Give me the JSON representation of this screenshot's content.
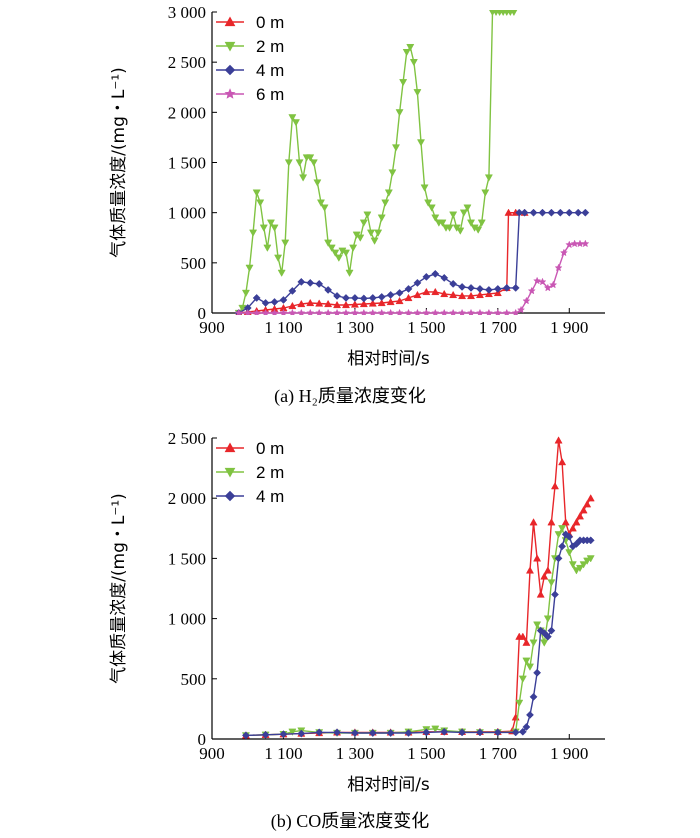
{
  "colors": {
    "0 m": "#e8262a",
    "2 m": "#80c342",
    "4 m": "#3b3f98",
    "6 m": "#c957b4"
  },
  "chart_data": [
    {
      "type": "line",
      "caption": "(a)  H₂质量浓度变化",
      "xlabel": "相对时间/s",
      "ylabel": "气体质量浓度/(mg・L⁻¹)",
      "xlim": [
        900,
        2000
      ],
      "ylim": [
        0,
        3000
      ],
      "xticks": [
        900,
        1100,
        1300,
        1500,
        1700,
        1900
      ],
      "xticklabels": [
        "900",
        "1 100",
        "1 300",
        "1 500",
        "1 700",
        "1 900"
      ],
      "yticks": [
        0,
        500,
        1000,
        1500,
        2000,
        2500,
        3000
      ],
      "yticklabels": [
        "0",
        "500",
        "1 000",
        "1 500",
        "2 000",
        "2 500",
        "3 000"
      ],
      "legend_position": "top-left",
      "series": [
        {
          "name": "0 m",
          "marker": "triangle-up",
          "x": [
            975,
            1000,
            1025,
            1050,
            1075,
            1100,
            1125,
            1150,
            1175,
            1200,
            1225,
            1250,
            1275,
            1300,
            1325,
            1350,
            1375,
            1400,
            1425,
            1450,
            1475,
            1500,
            1525,
            1550,
            1575,
            1600,
            1625,
            1650,
            1675,
            1700,
            1725,
            1730,
            1750,
            1775
          ],
          "y": [
            0,
            10,
            20,
            30,
            40,
            50,
            70,
            90,
            100,
            95,
            90,
            80,
            80,
            85,
            90,
            95,
            100,
            110,
            120,
            150,
            180,
            210,
            210,
            190,
            180,
            170,
            170,
            180,
            190,
            200,
            250,
            1000,
            1000,
            1000
          ]
        },
        {
          "name": "2 m",
          "marker": "triangle-down",
          "x": [
            975,
            985,
            995,
            1005,
            1015,
            1025,
            1035,
            1045,
            1055,
            1065,
            1075,
            1085,
            1095,
            1105,
            1115,
            1125,
            1135,
            1145,
            1155,
            1165,
            1175,
            1185,
            1195,
            1205,
            1215,
            1225,
            1235,
            1245,
            1255,
            1265,
            1275,
            1285,
            1295,
            1305,
            1315,
            1325,
            1335,
            1345,
            1355,
            1365,
            1375,
            1385,
            1395,
            1405,
            1415,
            1425,
            1435,
            1445,
            1455,
            1465,
            1475,
            1485,
            1495,
            1505,
            1515,
            1525,
            1535,
            1545,
            1555,
            1565,
            1575,
            1585,
            1595,
            1605,
            1615,
            1625,
            1635,
            1645,
            1655,
            1665,
            1675,
            1685,
            1695,
            1705,
            1715,
            1725,
            1735,
            1745
          ],
          "y": [
            0,
            50,
            200,
            450,
            800,
            1200,
            1100,
            850,
            650,
            900,
            850,
            550,
            400,
            700,
            1500,
            1950,
            1900,
            1500,
            1350,
            1550,
            1550,
            1500,
            1300,
            1100,
            1050,
            700,
            650,
            600,
            550,
            620,
            600,
            400,
            650,
            780,
            750,
            900,
            980,
            800,
            720,
            800,
            950,
            1100,
            1200,
            1400,
            1650,
            2000,
            2300,
            2600,
            2650,
            2500,
            2200,
            1700,
            1250,
            1100,
            1050,
            950,
            900,
            900,
            850,
            850,
            980,
            850,
            820,
            1000,
            1050,
            900,
            850,
            830,
            900,
            1200,
            1350,
            3000,
            3000,
            3000,
            3000,
            3000,
            3000,
            3000
          ]
        },
        {
          "name": "4 m",
          "marker": "diamond",
          "x": [
            975,
            1000,
            1025,
            1050,
            1075,
            1100,
            1125,
            1150,
            1175,
            1200,
            1225,
            1250,
            1275,
            1300,
            1325,
            1350,
            1375,
            1400,
            1425,
            1450,
            1475,
            1500,
            1525,
            1550,
            1575,
            1600,
            1625,
            1650,
            1675,
            1700,
            1725,
            1750,
            1760,
            1775,
            1800,
            1825,
            1850,
            1875,
            1900,
            1925,
            1945
          ],
          "y": [
            0,
            50,
            150,
            100,
            110,
            130,
            220,
            310,
            300,
            290,
            230,
            170,
            150,
            150,
            145,
            150,
            160,
            180,
            200,
            240,
            300,
            360,
            390,
            350,
            290,
            260,
            250,
            240,
            230,
            240,
            250,
            250,
            1000,
            1000,
            1000,
            1000,
            1000,
            1000,
            1000,
            1000,
            1000
          ]
        },
        {
          "name": "6 m",
          "marker": "star",
          "x": [
            975,
            1000,
            1025,
            1050,
            1075,
            1100,
            1125,
            1150,
            1175,
            1200,
            1225,
            1250,
            1275,
            1300,
            1325,
            1350,
            1375,
            1400,
            1425,
            1450,
            1475,
            1500,
            1525,
            1550,
            1575,
            1600,
            1625,
            1650,
            1675,
            1700,
            1725,
            1750,
            1765,
            1780,
            1795,
            1810,
            1825,
            1840,
            1855,
            1870,
            1885,
            1900,
            1915,
            1930,
            1945
          ],
          "y": [
            0,
            0,
            0,
            0,
            0,
            0,
            0,
            0,
            0,
            0,
            0,
            0,
            0,
            0,
            0,
            0,
            0,
            0,
            0,
            0,
            0,
            0,
            0,
            0,
            0,
            0,
            0,
            0,
            0,
            0,
            0,
            0,
            30,
            120,
            220,
            320,
            310,
            250,
            280,
            450,
            600,
            680,
            690,
            690,
            690
          ]
        }
      ]
    },
    {
      "type": "line",
      "caption": "(b)  CO质量浓度变化",
      "xlabel": "相对时间/s",
      "ylabel": "气体质量浓度/(mg・L⁻¹)",
      "xlim": [
        900,
        2000
      ],
      "ylim": [
        0,
        2500
      ],
      "xticks": [
        900,
        1100,
        1300,
        1500,
        1700,
        1900
      ],
      "xticklabels": [
        "900",
        "1 100",
        "1 300",
        "1 500",
        "1 700",
        "1 900"
      ],
      "yticks": [
        0,
        500,
        1000,
        1500,
        2000,
        2500
      ],
      "yticklabels": [
        "0",
        "500",
        "1 000",
        "1 500",
        "2 000",
        "2 500"
      ],
      "legend_position": "top-left",
      "series": [
        {
          "name": "0 m",
          "marker": "triangle-up",
          "x": [
            995,
            1050,
            1100,
            1150,
            1200,
            1250,
            1300,
            1350,
            1400,
            1450,
            1500,
            1550,
            1600,
            1650,
            1700,
            1740,
            1750,
            1760,
            1770,
            1780,
            1790,
            1800,
            1810,
            1820,
            1830,
            1840,
            1850,
            1860,
            1870,
            1880,
            1890,
            1900,
            1910,
            1920,
            1930,
            1940,
            1950,
            1960
          ],
          "y": [
            30,
            35,
            40,
            45,
            50,
            55,
            55,
            55,
            55,
            55,
            60,
            60,
            60,
            60,
            60,
            65,
            180,
            850,
            850,
            800,
            1400,
            1800,
            1500,
            1200,
            1350,
            1400,
            1800,
            2100,
            2480,
            2300,
            1800,
            1700,
            1750,
            1800,
            1850,
            1900,
            1950,
            2000
          ]
        },
        {
          "name": "2 m",
          "marker": "triangle-down",
          "x": [
            995,
            1050,
            1100,
            1125,
            1150,
            1200,
            1250,
            1300,
            1350,
            1400,
            1450,
            1500,
            1525,
            1550,
            1600,
            1650,
            1700,
            1750,
            1760,
            1770,
            1780,
            1790,
            1800,
            1810,
            1820,
            1830,
            1840,
            1850,
            1860,
            1870,
            1880,
            1890,
            1900,
            1910,
            1920,
            1930,
            1940,
            1950,
            1960
          ],
          "y": [
            30,
            35,
            40,
            60,
            70,
            55,
            50,
            50,
            50,
            50,
            60,
            80,
            85,
            70,
            60,
            55,
            55,
            60,
            300,
            500,
            650,
            600,
            800,
            950,
            900,
            800,
            1000,
            1300,
            1500,
            1700,
            1750,
            1650,
            1550,
            1450,
            1400,
            1420,
            1450,
            1480,
            1500
          ]
        },
        {
          "name": "4 m",
          "marker": "diamond",
          "x": [
            995,
            1050,
            1100,
            1150,
            1200,
            1250,
            1300,
            1350,
            1400,
            1450,
            1500,
            1550,
            1600,
            1650,
            1700,
            1750,
            1770,
            1780,
            1790,
            1800,
            1810,
            1820,
            1830,
            1840,
            1850,
            1860,
            1870,
            1880,
            1890,
            1900,
            1910,
            1920,
            1930,
            1940,
            1950,
            1960
          ],
          "y": [
            30,
            35,
            40,
            45,
            55,
            55,
            50,
            50,
            50,
            50,
            55,
            60,
            55,
            55,
            55,
            55,
            60,
            100,
            200,
            350,
            550,
            900,
            880,
            850,
            900,
            1200,
            1500,
            1600,
            1700,
            1680,
            1600,
            1620,
            1650,
            1650,
            1650,
            1650
          ]
        }
      ]
    }
  ]
}
